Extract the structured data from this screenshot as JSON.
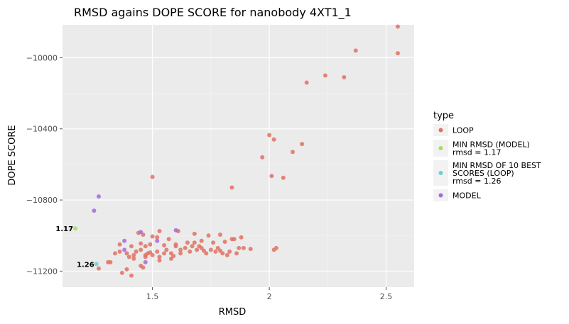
{
  "chart_data": {
    "type": "scatter",
    "title": "RMSD agains DOPE SCORE for nanobody 4XT1_1",
    "xlabel": "RMSD",
    "ylabel": "DOPE SCORE",
    "xlim": [
      1.115,
      2.62
    ],
    "ylim": [
      -11290,
      -9815
    ],
    "x_ticks": [
      1.5,
      2,
      2.5
    ],
    "x_tick_labels": [
      "1.5",
      "2",
      "2.5"
    ],
    "y_ticks": [
      -11200,
      -10800,
      -10400,
      -10000
    ],
    "y_tick_labels": [
      "−11200",
      "−10800",
      "−10400",
      "−10000"
    ],
    "grid": true,
    "legend": {
      "title": "type",
      "placement": "right",
      "entries": [
        {
          "label_lines": [
            "LOOP"
          ],
          "color": "#E07264"
        },
        {
          "label_lines": [
            "MIN RMSD (MODEL)",
            "rmsd = 1.17"
          ],
          "color": "#A3E05F"
        },
        {
          "label_lines": [
            "MIN RMSD OF 10 BEST",
            "SCORES (LOOP)",
            "rmsd = 1.26"
          ],
          "color": "#6CCFD6"
        },
        {
          "label_lines": [
            "MODEL"
          ],
          "color": "#A56ADF"
        }
      ]
    },
    "series": [
      {
        "key": "loop",
        "color": "#E07264",
        "points": [
          [
            2.55,
            -9825
          ],
          [
            2.55,
            -9975
          ],
          [
            2.37,
            -9960
          ],
          [
            2.24,
            -10100
          ],
          [
            2.32,
            -10110
          ],
          [
            2.16,
            -10140
          ],
          [
            2.0,
            -10435
          ],
          [
            2.02,
            -10460
          ],
          [
            2.14,
            -10485
          ],
          [
            2.1,
            -10530
          ],
          [
            1.97,
            -10560
          ],
          [
            2.01,
            -10665
          ],
          [
            2.06,
            -10675
          ],
          [
            1.5,
            -10670
          ],
          [
            1.84,
            -10730
          ],
          [
            1.44,
            -10985
          ],
          [
            1.46,
            -10995
          ],
          [
            1.53,
            -10975
          ],
          [
            1.61,
            -10975
          ],
          [
            1.5,
            -11005
          ],
          [
            1.52,
            -11010
          ],
          [
            1.57,
            -11020
          ],
          [
            1.68,
            -10990
          ],
          [
            1.74,
            -11000
          ],
          [
            1.79,
            -10995
          ],
          [
            1.88,
            -11010
          ],
          [
            1.36,
            -11050
          ],
          [
            1.41,
            -11060
          ],
          [
            1.45,
            -11045
          ],
          [
            1.47,
            -11060
          ],
          [
            1.55,
            -11055
          ],
          [
            1.6,
            -11050
          ],
          [
            1.65,
            -11040
          ],
          [
            1.68,
            -11040
          ],
          [
            1.71,
            -11030
          ],
          [
            1.76,
            -11040
          ],
          [
            1.81,
            -11035
          ],
          [
            1.84,
            -11020
          ],
          [
            1.85,
            -11020
          ],
          [
            1.89,
            -11070
          ],
          [
            1.92,
            -11075
          ],
          [
            2.03,
            -11070
          ],
          [
            2.02,
            -11080
          ],
          [
            1.34,
            -11100
          ],
          [
            1.36,
            -11090
          ],
          [
            1.39,
            -11100
          ],
          [
            1.4,
            -11120
          ],
          [
            1.42,
            -11110
          ],
          [
            1.43,
            -11090
          ],
          [
            1.45,
            -11080
          ],
          [
            1.47,
            -11110
          ],
          [
            1.49,
            -11095
          ],
          [
            1.5,
            -11110
          ],
          [
            1.52,
            -11090
          ],
          [
            1.53,
            -11120
          ],
          [
            1.56,
            -11080
          ],
          [
            1.58,
            -11100
          ],
          [
            1.59,
            -11115
          ],
          [
            1.62,
            -11080
          ],
          [
            1.64,
            -11070
          ],
          [
            1.66,
            -11090
          ],
          [
            1.67,
            -11060
          ],
          [
            1.69,
            -11080
          ],
          [
            1.71,
            -11070
          ],
          [
            1.73,
            -11100
          ],
          [
            1.75,
            -11080
          ],
          [
            1.77,
            -11090
          ],
          [
            1.78,
            -11070
          ],
          [
            1.8,
            -11100
          ],
          [
            1.82,
            -11110
          ],
          [
            1.83,
            -11090
          ],
          [
            1.87,
            -11070
          ],
          [
            1.86,
            -11100
          ],
          [
            1.31,
            -11150
          ],
          [
            1.32,
            -11150
          ],
          [
            1.42,
            -11130
          ],
          [
            1.47,
            -11120
          ],
          [
            1.48,
            -11100
          ],
          [
            1.53,
            -11140
          ],
          [
            1.58,
            -11130
          ],
          [
            1.27,
            -11185
          ],
          [
            1.37,
            -11210
          ],
          [
            1.39,
            -11190
          ],
          [
            1.41,
            -11225
          ],
          [
            1.45,
            -11170
          ],
          [
            1.46,
            -11180
          ],
          [
            1.55,
            -11100
          ],
          [
            1.62,
            -11100
          ],
          [
            1.6,
            -11060
          ],
          [
            1.7,
            -11060
          ],
          [
            1.72,
            -11085
          ],
          [
            1.79,
            -11085
          ],
          [
            1.49,
            -11050
          ]
        ]
      },
      {
        "key": "model",
        "color": "#A56ADF",
        "points": [
          [
            1.27,
            -10780
          ],
          [
            1.25,
            -10860
          ],
          [
            1.6,
            -10970
          ],
          [
            1.45,
            -10980
          ],
          [
            1.38,
            -11030
          ],
          [
            1.52,
            -11030
          ],
          [
            1.38,
            -11080
          ],
          [
            1.47,
            -11150
          ]
        ]
      },
      {
        "key": "min_rmsd_model",
        "color": "#A3E05F",
        "points": [
          [
            1.17,
            -10960
          ]
        ]
      },
      {
        "key": "min_rmsd_loop",
        "color": "#6CCFD6",
        "points": [
          [
            1.26,
            -11160
          ]
        ]
      }
    ],
    "annotations": [
      {
        "text": "1.17",
        "x": 1.17,
        "y": -10960
      },
      {
        "text": "1.26",
        "x": 1.26,
        "y": -11160
      }
    ]
  }
}
